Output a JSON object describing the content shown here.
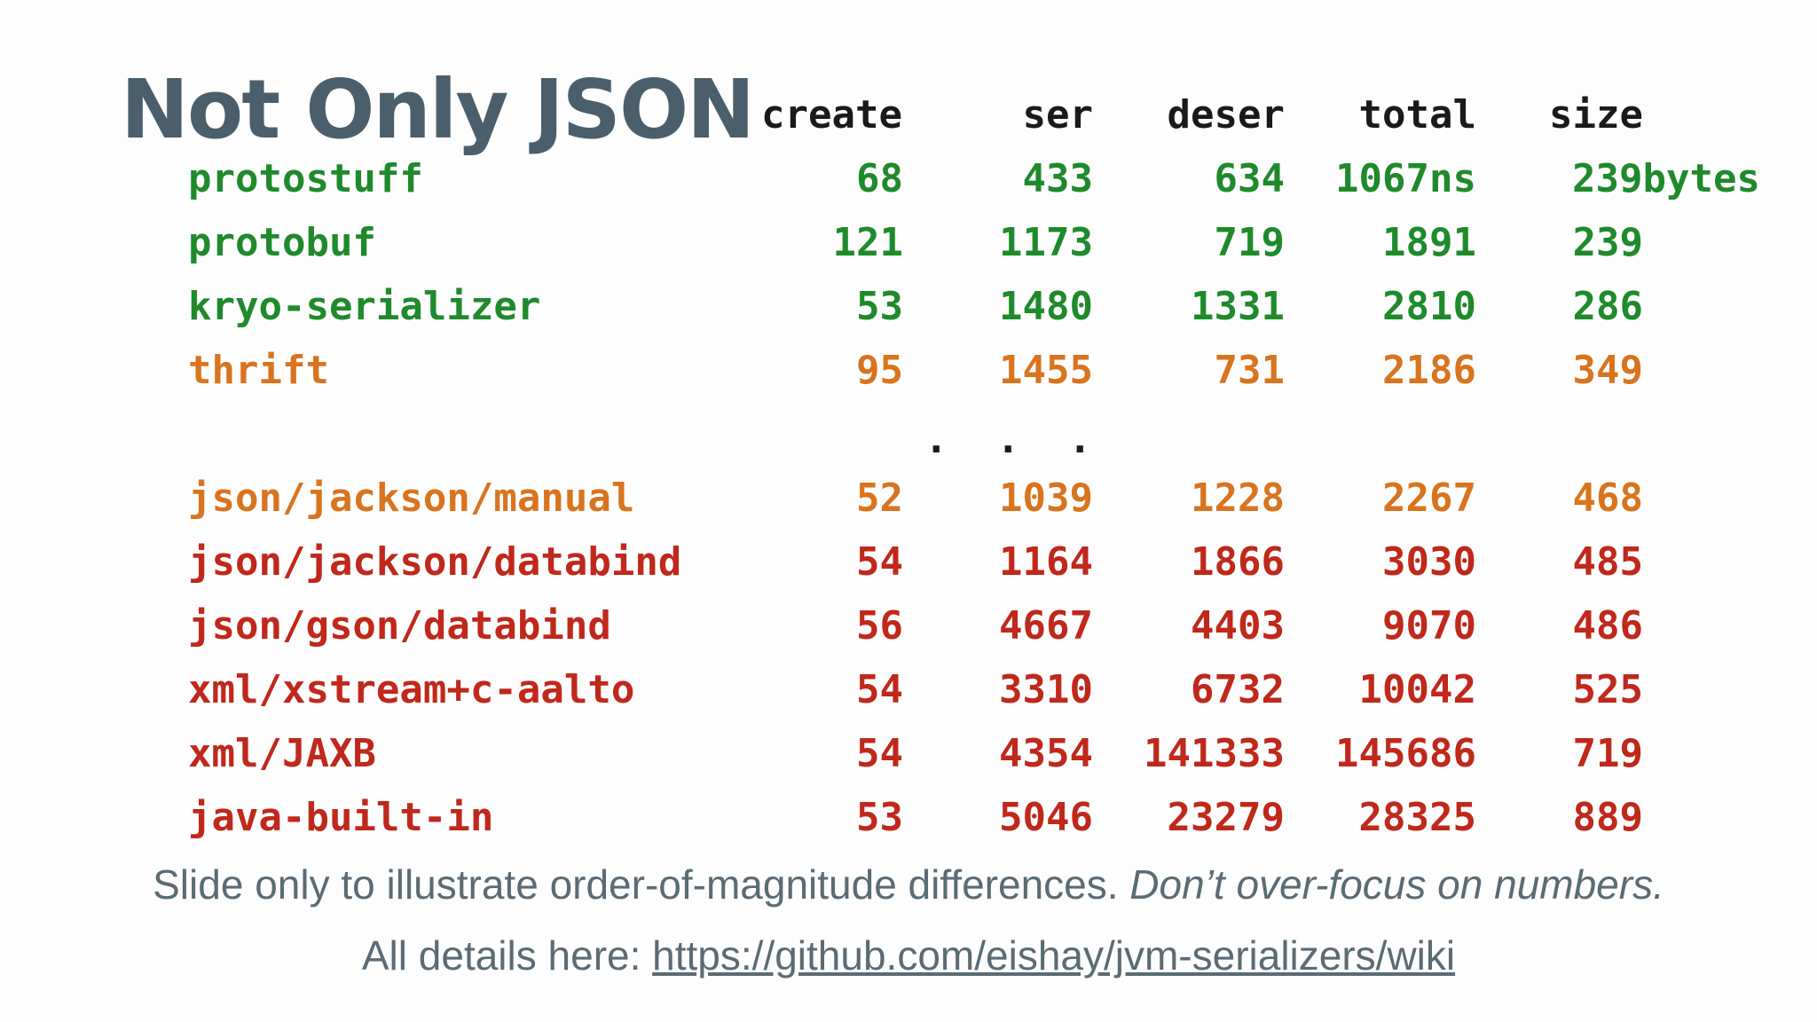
{
  "title": "Not Only JSON",
  "headers": {
    "create": "create",
    "ser": "ser",
    "deser": "deser",
    "total": "total",
    "size": "size"
  },
  "rows": [
    {
      "name": "protostuff",
      "create": "68",
      "ser": "433",
      "deser": "634",
      "total": "1067ns",
      "size": "239bytes",
      "color": "#1f8a2c"
    },
    {
      "name": "protobuf",
      "create": "121",
      "ser": "1173",
      "deser": "719",
      "total": "1891",
      "size": "239",
      "color": "#1f8a2c"
    },
    {
      "name": "kryo-serializer",
      "create": "53",
      "ser": "1480",
      "deser": "1331",
      "total": "2810",
      "size": "286",
      "color": "#1f8a2c"
    },
    {
      "name": "thrift",
      "create": "95",
      "ser": "1455",
      "deser": "731",
      "total": "2186",
      "size": "349",
      "color": "#d9741e"
    },
    {
      "name": "json/jackson/manual",
      "create": "52",
      "ser": "1039",
      "deser": "1228",
      "total": "2267",
      "size": "468",
      "color": "#d9741e"
    },
    {
      "name": "json/jackson/databind",
      "create": "54",
      "ser": "1164",
      "deser": "1866",
      "total": "3030",
      "size": "485",
      "color": "#c0281b"
    },
    {
      "name": "json/gson/databind",
      "create": "56",
      "ser": "4667",
      "deser": "4403",
      "total": "9070",
      "size": "486",
      "color": "#c0281b"
    },
    {
      "name": "xml/xstream+c-aalto",
      "create": "54",
      "ser": "3310",
      "deser": "6732",
      "total": "10042",
      "size": "525",
      "color": "#c0281b"
    },
    {
      "name": "xml/JAXB",
      "create": "54",
      "ser": "4354",
      "deser": "141333",
      "total": "145686",
      "size": "719",
      "color": "#c0281b"
    },
    {
      "name": "java-built-in",
      "create": "53",
      "ser": "5046",
      "deser": "23279",
      "total": "28325",
      "size": "889",
      "color": "#c0281b"
    }
  ],
  "ellipsis": ". . .",
  "note": {
    "plain": "Slide only to illustrate order-of-magnitude differences.",
    "italic": "Don’t over-focus on numbers."
  },
  "details": {
    "prefix": "All details here:",
    "link": "https://github.com/eishay/jvm-serializers/wiki"
  }
}
